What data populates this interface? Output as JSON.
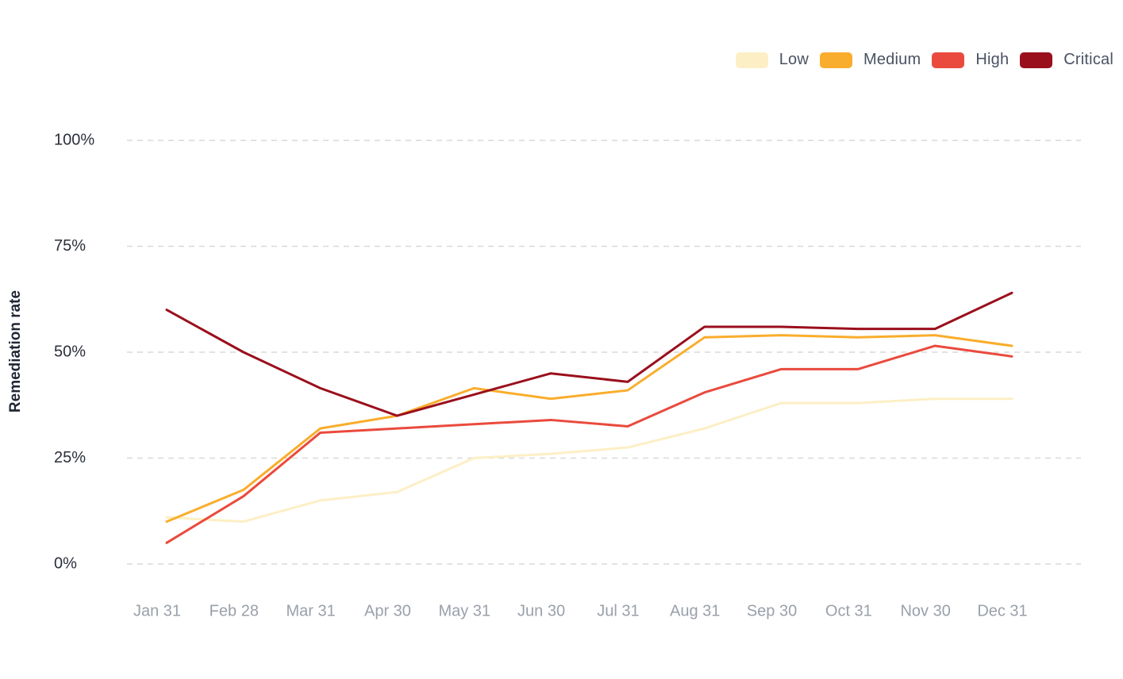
{
  "chart_data": {
    "type": "line",
    "title": "",
    "xlabel": "",
    "ylabel": "Remediation rate",
    "categories": [
      "Jan 31",
      "Feb 28",
      "Mar 31",
      "Apr 30",
      "May 31",
      "Jun 30",
      "Jul 31",
      "Aug 31",
      "Sep 30",
      "Oct 31",
      "Nov 30",
      "Dec 31"
    ],
    "y_ticks": [
      0,
      25,
      50,
      75,
      100
    ],
    "y_tick_labels": [
      "0%",
      "25%",
      "50%",
      "75%",
      "100%"
    ],
    "ylim": [
      0,
      100
    ],
    "grid": "horizontal dashed",
    "legend_position": "top-right",
    "series": [
      {
        "name": "Low",
        "color": "#fdefc5",
        "values": [
          11,
          10,
          15,
          17,
          25,
          26,
          27.5,
          32,
          38,
          38,
          39,
          39
        ]
      },
      {
        "name": "Medium",
        "color": "#f9ad2c",
        "values": [
          10,
          17.5,
          32,
          35,
          41.5,
          39,
          41,
          53.5,
          54,
          53.5,
          54,
          51.5
        ]
      },
      {
        "name": "High",
        "color": "#ea4a3d",
        "values": [
          5,
          16,
          31,
          32,
          33,
          34,
          32.5,
          40.5,
          46,
          46,
          51.5,
          49
        ]
      },
      {
        "name": "Critical",
        "color": "#9a0f1c",
        "values": [
          60,
          50,
          41.5,
          35,
          40,
          45,
          43,
          56,
          56,
          55.5,
          55.5,
          64
        ]
      }
    ]
  }
}
